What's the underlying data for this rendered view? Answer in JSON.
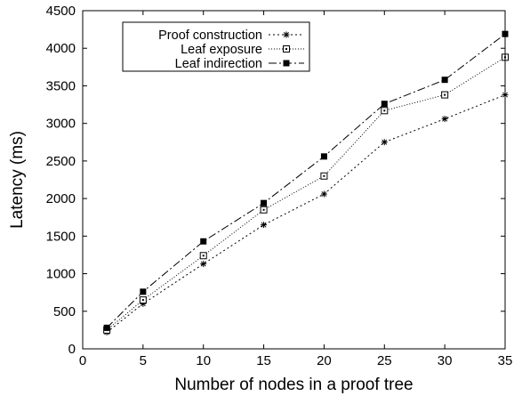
{
  "chart_data": {
    "type": "line",
    "title": "",
    "xlabel": "Number of nodes in a proof tree",
    "ylabel": "Latency (ms)",
    "xlim": [
      0,
      35
    ],
    "ylim": [
      0,
      4500
    ],
    "xticks": [
      0,
      5,
      10,
      15,
      20,
      25,
      30,
      35
    ],
    "yticks": [
      0,
      500,
      1000,
      1500,
      2000,
      2500,
      3000,
      3500,
      4000,
      4500
    ],
    "grid": false,
    "legend_position": "top-left",
    "x": [
      2,
      5,
      10,
      15,
      20,
      25,
      30,
      35
    ],
    "series": [
      {
        "name": "Proof construction",
        "marker": "asterisk",
        "dash": "2,3",
        "values": [
          220,
          600,
          1130,
          1650,
          2060,
          2750,
          3060,
          3380
        ]
      },
      {
        "name": "Leaf exposure",
        "marker": "open-square",
        "dash": "1,2",
        "values": [
          250,
          650,
          1240,
          1850,
          2300,
          3170,
          3380,
          3880
        ]
      },
      {
        "name": "Leaf indirection",
        "marker": "filled-square",
        "dash": "9,3,2,3",
        "values": [
          280,
          760,
          1430,
          1940,
          2560,
          3260,
          3580,
          4190
        ]
      }
    ]
  }
}
